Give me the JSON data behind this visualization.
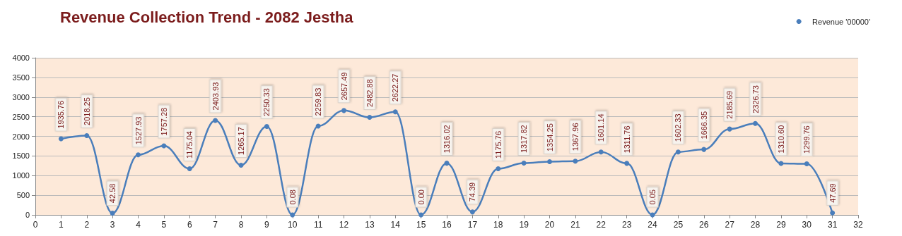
{
  "chart_data": {
    "type": "line",
    "title": "Revenue Collection Trend - 2082 Jestha",
    "x": [
      1,
      2,
      3,
      4,
      5,
      6,
      7,
      8,
      9,
      10,
      11,
      12,
      13,
      14,
      15,
      16,
      17,
      18,
      19,
      20,
      21,
      22,
      23,
      24,
      25,
      26,
      27,
      28,
      29,
      30,
      31
    ],
    "series": [
      {
        "name": "Revenue '00000'",
        "color": "#4a7ebb",
        "values": [
          1935.76,
          2018.25,
          42.58,
          1527.93,
          1757.28,
          1175.04,
          2403.93,
          1265.17,
          2250.33,
          0.08,
          2259.83,
          2657.49,
          2482.88,
          2622.27,
          0.0,
          1316.02,
          74.39,
          1175.76,
          1317.82,
          1354.25,
          1367.96,
          1601.14,
          1311.76,
          0.05,
          1602.33,
          1666.35,
          2185.69,
          2326.73,
          1310.6,
          1299.76,
          47.69
        ],
        "value_labels": [
          "1935.76",
          "2018.25",
          "42.58",
          "1527.93",
          "1757.28",
          "1175.04",
          "2403.93",
          "1265.17",
          "2250.33",
          "0.08",
          "2259.83",
          "2657.49",
          "2482.88",
          "2622.27",
          "0.00",
          "1316.02",
          "74.39",
          "1175.76",
          "1317.82",
          "1354.25",
          "1367.96",
          "1601.14",
          "1311.76",
          "0.05",
          "1602.33",
          "1666.35",
          "2185.69",
          "2326.73",
          "1310.60",
          "1299.76",
          "47.69"
        ]
      }
    ],
    "xlim": [
      0,
      32
    ],
    "xticks": [
      0,
      1,
      2,
      3,
      4,
      5,
      6,
      7,
      8,
      9,
      10,
      11,
      12,
      13,
      14,
      15,
      16,
      17,
      18,
      19,
      20,
      21,
      22,
      23,
      24,
      25,
      26,
      27,
      28,
      29,
      30,
      31,
      32
    ],
    "ylim": [
      0,
      4000
    ],
    "yticks": [
      0,
      500,
      1000,
      1500,
      2000,
      2500,
      3000,
      3500,
      4000
    ],
    "grid": "y",
    "legend": "top right",
    "marker": "circle",
    "line_style": "solid"
  }
}
